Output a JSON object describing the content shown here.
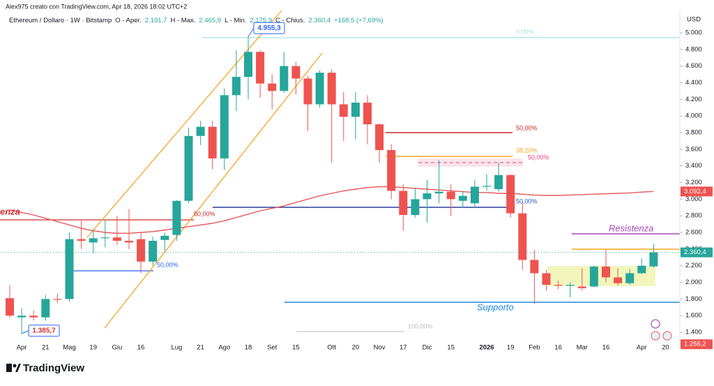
{
  "chart_data": {
    "type": "candlestick",
    "credit": "Alex975 creato con TradingView.com, Apr 18, 2026 18:02 UTC+2",
    "title": "Ethereum / Dollaro · 1W · Bitstamp",
    "header_stats": [
      {
        "label": "O - Aper.",
        "value": "2.191,7"
      },
      {
        "label": "H - Max.",
        "value": "2.465,9"
      },
      {
        "label": "L - Min.",
        "value": "2.175,9"
      },
      {
        "label": "C - Chius.",
        "value": "2.360,4"
      },
      {
        "label": "",
        "value": "+168,5 (+7,69%)"
      }
    ],
    "currency": "USD",
    "logo": "TradingView",
    "up_color": "#26a69a",
    "down_color": "#ef5350",
    "categories": [
      null,
      "Apr",
      null,
      "21",
      null,
      "Mag",
      null,
      "19",
      null,
      "Giu",
      null,
      "16",
      null,
      null,
      "Lug",
      null,
      "21",
      null,
      "Ago",
      null,
      "18",
      null,
      "Set",
      null,
      "15",
      null,
      null,
      "Ott",
      null,
      "20",
      null,
      "Nov",
      null,
      "17",
      null,
      "Dic",
      null,
      "15",
      null,
      null,
      "2026",
      null,
      "19",
      null,
      "Feb",
      null,
      "16",
      null,
      "Mar",
      null,
      "16",
      null,
      null,
      "Apr",
      null,
      "20"
    ],
    "open": [
      1810,
      1580,
      1600,
      1580,
      1800,
      1800,
      2520,
      2480,
      2530,
      2540,
      2500,
      2520,
      2250,
      2510,
      2570,
      2980,
      3760,
      3870,
      3490,
      4250,
      4470,
      4770,
      4390,
      4300,
      4600,
      4450,
      4140,
      4520,
      4140,
      3990,
      4160,
      3900,
      3590,
      3100,
      2810,
      3000,
      3070,
      3090,
      2980,
      2950,
      3150,
      3120,
      3290,
      2830,
      2270,
      2110,
      1970,
      1960,
      1950,
      1950,
      2190,
      2060,
      1990,
      2110,
      2191.7,
      null
    ],
    "high": [
      1970,
      1690,
      1660,
      1850,
      1870,
      2600,
      2740,
      2640,
      2750,
      2800,
      2880,
      2600,
      2550,
      2600,
      2990,
      3860,
      3940,
      3940,
      4330,
      4790,
      4955.3,
      4790,
      4500,
      4770,
      4650,
      4480,
      4550,
      4560,
      4290,
      4290,
      4250,
      3910,
      3660,
      3180,
      3140,
      3230,
      3470,
      3180,
      3100,
      3230,
      3300,
      3440,
      3300,
      2970,
      2390,
      2150,
      2020,
      2000,
      2170,
      2200,
      2390,
      2170,
      2160,
      2290,
      2465.9,
      null
    ],
    "low": [
      1575,
      1385.7,
      1540,
      1540,
      1750,
      1770,
      2400,
      2350,
      2420,
      2450,
      2400,
      2110,
      2200,
      2380,
      2500,
      2950,
      3650,
      3360,
      3350,
      4060,
      4200,
      4220,
      4080,
      4280,
      4260,
      3820,
      4100,
      3440,
      3700,
      3720,
      3660,
      3440,
      3000,
      2620,
      2780,
      2720,
      2950,
      2800,
      2900,
      2900,
      3100,
      3090,
      2780,
      2150,
      1740,
      1900,
      1920,
      1820,
      1900,
      1940,
      2000,
      1960,
      1970,
      2100,
      2175.9,
      null
    ],
    "close": [
      1600,
      1600,
      1580,
      1800,
      1790,
      2520,
      2500,
      2530,
      2540,
      2500,
      2480,
      2250,
      2500,
      2560,
      2980,
      3760,
      3870,
      3490,
      4250,
      4470,
      4770,
      4390,
      4300,
      4600,
      4450,
      4140,
      4520,
      4140,
      3990,
      4160,
      3900,
      3590,
      3100,
      2810,
      3000,
      3070,
      3090,
      3000,
      3040,
      3150,
      3160,
      3290,
      2830,
      2270,
      2110,
      1970,
      1960,
      1970,
      1930,
      2190,
      2060,
      1990,
      2110,
      2200,
      2360.4,
      null
    ],
    "ma_color": "#e8575a",
    "ma_values": [
      2870,
      2840,
      2810,
      2770,
      2730,
      2690,
      2650,
      2620,
      2600,
      2590,
      2590,
      2600,
      2610,
      2630,
      2650,
      2670,
      2690,
      2710,
      2740,
      2780,
      2820,
      2860,
      2890,
      2920,
      2960,
      3000,
      3040,
      3070,
      3100,
      3120,
      3140,
      3150,
      3150,
      3140,
      3130,
      3120,
      3110,
      3100,
      3090,
      3080,
      3080,
      3070,
      3070,
      3060,
      3050,
      3045,
      3045,
      3050,
      3055,
      3060,
      3065,
      3070,
      3075,
      3085,
      3092.4,
      null
    ],
    "ylim": [
      1216,
      5310
    ],
    "yticks": [
      {
        "value": 1400,
        "label": "1.400"
      },
      {
        "value": 1600,
        "label": "1.600"
      },
      {
        "value": 1800,
        "label": "1.800"
      },
      {
        "value": 2000,
        "label": "2.000"
      },
      {
        "value": 2200,
        "label": "2.200"
      },
      {
        "value": 2400,
        "label": "2.400"
      },
      {
        "value": 2600,
        "label": "2.600"
      },
      {
        "value": 2800,
        "label": "2.800"
      },
      {
        "value": 3000,
        "label": "3.000"
      },
      {
        "value": 3200,
        "label": "3.200"
      },
      {
        "value": 3400,
        "label": "3.400"
      },
      {
        "value": 3600,
        "label": "3.600"
      },
      {
        "value": 3800,
        "label": "3.800"
      },
      {
        "value": 4000,
        "label": "4.000"
      },
      {
        "value": 4200,
        "label": "4.200"
      },
      {
        "value": 4400,
        "label": "4.400"
      },
      {
        "value": 4600,
        "label": "4.600"
      },
      {
        "value": 4800,
        "label": "4.800"
      },
      {
        "value": 5000,
        "label": "5.000"
      }
    ],
    "price_tags": [
      {
        "value": 3092.4,
        "label": "3.092,4",
        "color": "#ef5350"
      },
      {
        "value": 2360.4,
        "label": "2.360,4",
        "color": "#26a69a"
      },
      {
        "value": 1256.2,
        "label": "1.256,2",
        "color": "#ef5350"
      }
    ],
    "extreme_markers": [
      {
        "value": 4955.3,
        "label": "4.955,3",
        "index": 20
      },
      {
        "value": 1385.7,
        "label": "1.385,7",
        "index": 1
      }
    ],
    "drawing_labels": [
      "enza",
      "Resistenza",
      "Supporto",
      "0,00%",
      "50,00%",
      "38,20%",
      "50,00%",
      "50,00%",
      "50,00%",
      "50,00%",
      "100,00%"
    ]
  }
}
